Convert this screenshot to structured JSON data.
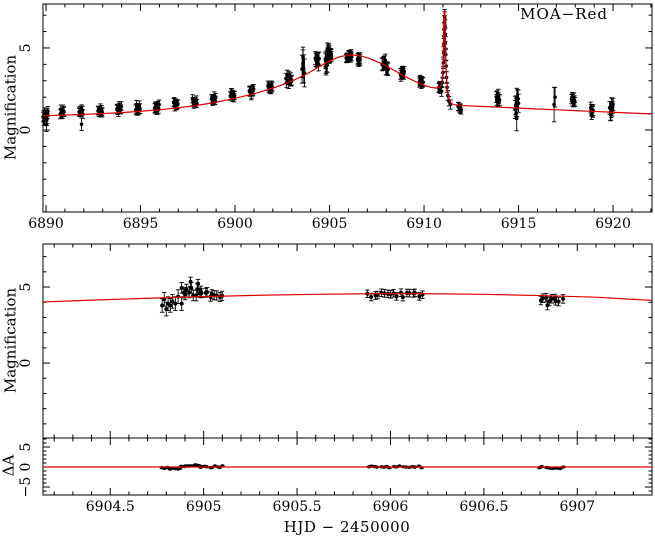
{
  "annotation": {
    "dataset_label": "MOA−Red"
  },
  "axis_titles": {
    "top_y": "Magnification",
    "middle_y": "Magnification",
    "bottom_y": "ΔA",
    "x": "HJD − 2450000"
  },
  "colors": {
    "model": "#dd0000",
    "data": "#000000",
    "frame": "#000000",
    "background": "#ffffff"
  },
  "scatter_seed": 20140607,
  "clusters_format": "[x_start, x_end, n_points, mean_y, y_scatter, y_error]",
  "points_format": "[x, y, y_error]",
  "chart_data": [
    {
      "name": "top",
      "type": "scatter",
      "description": "Full microlensing light curve with best-fit model and caustic spike",
      "ylabel": "Magnification",
      "xlim": [
        6889.84,
        6922.06
      ],
      "ylim": [
        -5.0,
        7.68
      ],
      "x_ticks": {
        "major": [
          6890,
          6895,
          6900,
          6905,
          6910,
          6915,
          6920
        ],
        "major_labels": [
          "6890",
          "6895",
          "6900",
          "6905",
          "6910",
          "6915",
          "6920"
        ],
        "minor_step": 1
      },
      "y_ticks": {
        "major": [
          0,
          5
        ],
        "major_labels": [
          "0",
          "5"
        ],
        "minor_step": 1
      },
      "model_line": [
        [
          6889.84,
          0.87
        ],
        [
          6891.0,
          0.91
        ],
        [
          6892.0,
          0.95
        ],
        [
          6893.0,
          1.0
        ],
        [
          6894.0,
          1.06
        ],
        [
          6895.0,
          1.14
        ],
        [
          6896.0,
          1.23
        ],
        [
          6897.0,
          1.35
        ],
        [
          6898.0,
          1.5
        ],
        [
          6899.0,
          1.69
        ],
        [
          6900.0,
          1.93
        ],
        [
          6901.0,
          2.21
        ],
        [
          6902.0,
          2.55
        ],
        [
          6903.0,
          2.97
        ],
        [
          6903.8,
          3.42
        ],
        [
          6904.4,
          3.82
        ],
        [
          6905.0,
          4.2
        ],
        [
          6905.5,
          4.45
        ],
        [
          6905.9,
          4.56
        ],
        [
          6906.3,
          4.57
        ],
        [
          6906.7,
          4.5
        ],
        [
          6907.1,
          4.36
        ],
        [
          6907.6,
          4.12
        ],
        [
          6908.1,
          3.84
        ],
        [
          6908.6,
          3.52
        ],
        [
          6909.1,
          3.2
        ],
        [
          6909.6,
          2.92
        ],
        [
          6910.0,
          2.73
        ],
        [
          6910.35,
          2.6
        ],
        [
          6910.6,
          2.56
        ],
        [
          6910.8,
          2.6
        ],
        [
          6910.93,
          2.8
        ],
        [
          6911.0,
          3.6
        ],
        [
          6911.04,
          6.0
        ],
        [
          6911.07,
          7.25
        ],
        [
          6911.1,
          7.25
        ],
        [
          6911.13,
          5.8
        ],
        [
          6911.17,
          3.6
        ],
        [
          6911.25,
          2.2
        ],
        [
          6911.38,
          1.7
        ],
        [
          6911.55,
          1.55
        ],
        [
          6912.0,
          1.49
        ],
        [
          6913.0,
          1.44
        ],
        [
          6914.0,
          1.39
        ],
        [
          6915.0,
          1.33
        ],
        [
          6916.0,
          1.28
        ],
        [
          6917.0,
          1.23
        ],
        [
          6918.0,
          1.18
        ],
        [
          6919.0,
          1.13
        ],
        [
          6920.0,
          1.08
        ],
        [
          6921.0,
          1.03
        ],
        [
          6922.06,
          0.98
        ]
      ],
      "clusters": [
        [
          6889.85,
          6890.1,
          12,
          0.85,
          0.3,
          0.3
        ],
        [
          6890.75,
          6890.95,
          8,
          1.1,
          0.15,
          0.28
        ],
        [
          6891.75,
          6891.95,
          9,
          1.12,
          0.18,
          0.25
        ],
        [
          6892.75,
          6892.98,
          10,
          1.22,
          0.18,
          0.25
        ],
        [
          6893.75,
          6893.98,
          10,
          1.28,
          0.2,
          0.27
        ],
        [
          6894.75,
          6894.98,
          10,
          1.3,
          0.22,
          0.3
        ],
        [
          6895.75,
          6895.98,
          10,
          1.42,
          0.22,
          0.28
        ],
        [
          6896.75,
          6896.98,
          9,
          1.58,
          0.18,
          0.25
        ],
        [
          6897.75,
          6897.98,
          9,
          1.72,
          0.18,
          0.25
        ],
        [
          6898.75,
          6898.98,
          9,
          1.92,
          0.18,
          0.25
        ],
        [
          6899.75,
          6899.98,
          10,
          2.12,
          0.18,
          0.25
        ],
        [
          6900.75,
          6900.98,
          10,
          2.32,
          0.2,
          0.28
        ],
        [
          6901.75,
          6901.98,
          10,
          2.58,
          0.22,
          0.28
        ],
        [
          6902.7,
          6903.0,
          12,
          3.1,
          0.28,
          0.3
        ],
        [
          6903.55,
          6903.68,
          4,
          3.6,
          0.45,
          0.85
        ],
        [
          6904.25,
          6904.45,
          8,
          4.25,
          0.28,
          0.4
        ],
        [
          6904.78,
          6904.88,
          8,
          4.1,
          0.3,
          0.45
        ],
        [
          6904.88,
          6904.98,
          10,
          4.7,
          0.28,
          0.35
        ],
        [
          6904.98,
          6905.1,
          10,
          4.52,
          0.18,
          0.3
        ],
        [
          6905.88,
          6906.17,
          16,
          4.5,
          0.15,
          0.25
        ],
        [
          6906.48,
          6906.62,
          8,
          4.25,
          0.18,
          0.32
        ],
        [
          6907.78,
          6908.1,
          12,
          3.95,
          0.3,
          0.38
        ],
        [
          6908.75,
          6908.95,
          10,
          3.35,
          0.22,
          0.32
        ],
        [
          6909.75,
          6909.95,
          10,
          2.92,
          0.18,
          0.28
        ],
        [
          6910.78,
          6910.88,
          5,
          2.55,
          0.13,
          0.28
        ],
        [
          6911.8,
          6911.97,
          6,
          1.32,
          0.13,
          0.25
        ],
        [
          6913.82,
          6914.0,
          8,
          1.95,
          0.22,
          0.33
        ],
        [
          6914.82,
          6915.0,
          10,
          1.55,
          0.55,
          0.55
        ],
        [
          6917.8,
          6917.98,
          8,
          1.85,
          0.18,
          0.28
        ],
        [
          6918.82,
          6918.95,
          6,
          1.15,
          0.22,
          0.33
        ],
        [
          6919.82,
          6920.0,
          10,
          1.2,
          0.4,
          0.38
        ]
      ],
      "points": [
        [
          6890.02,
          0.33,
          0.42
        ],
        [
          6891.88,
          0.35,
          0.38
        ],
        [
          6903.6,
          4.45,
          0.6
        ],
        [
          6914.9,
          0.7,
          0.75
        ],
        [
          6916.88,
          1.55,
          1.05
        ],
        [
          6916.93,
          2.0,
          0.6
        ],
        [
          6910.93,
          2.35,
          0.3
        ],
        [
          6910.97,
          2.9,
          0.32
        ],
        [
          6911.0,
          3.5,
          0.35
        ],
        [
          6911.02,
          4.1,
          0.35
        ],
        [
          6911.04,
          4.7,
          0.38
        ],
        [
          6911.05,
          5.2,
          0.38
        ],
        [
          6911.06,
          5.7,
          0.4
        ],
        [
          6911.07,
          6.15,
          0.4
        ],
        [
          6911.08,
          6.55,
          0.42
        ],
        [
          6911.09,
          6.9,
          0.45
        ],
        [
          6911.1,
          6.75,
          0.45
        ],
        [
          6911.11,
          6.3,
          0.4
        ],
        [
          6911.12,
          5.8,
          0.4
        ],
        [
          6911.13,
          5.3,
          0.4
        ],
        [
          6911.15,
          4.6,
          0.38
        ],
        [
          6911.17,
          3.9,
          0.35
        ],
        [
          6911.19,
          3.2,
          0.35
        ],
        [
          6911.22,
          2.6,
          0.3
        ],
        [
          6911.26,
          2.1,
          0.3
        ],
        [
          6911.32,
          1.75,
          0.28
        ],
        [
          6911.4,
          1.55,
          0.28
        ]
      ]
    },
    {
      "name": "middle",
      "type": "scatter",
      "description": "Zoom on HJD 6904.1–6907.4 around light-curve peak",
      "ylabel": "Magnification",
      "xlim": [
        6904.14,
        6907.4
      ],
      "ylim": [
        -4.93,
        7.83
      ],
      "x_ticks": {
        "major": [
          6904.5,
          6905.0,
          6905.5,
          6906.0,
          6906.5,
          6907.0
        ],
        "major_labels": null,
        "minor_step": 0.1
      },
      "y_ticks": {
        "major": [
          0,
          5
        ],
        "major_labels": [
          "0",
          "5"
        ],
        "minor_step": 1
      },
      "model_line": [
        [
          6904.14,
          4.02
        ],
        [
          6904.4,
          4.14
        ],
        [
          6904.7,
          4.26
        ],
        [
          6905.0,
          4.37
        ],
        [
          6905.3,
          4.46
        ],
        [
          6905.6,
          4.52
        ],
        [
          6905.9,
          4.56
        ],
        [
          6906.2,
          4.56
        ],
        [
          6906.5,
          4.52
        ],
        [
          6906.8,
          4.44
        ],
        [
          6907.1,
          4.33
        ],
        [
          6907.4,
          4.12
        ]
      ],
      "clusters": [
        [
          6904.78,
          6904.88,
          8,
          4.05,
          0.32,
          0.45
        ],
        [
          6904.88,
          6904.98,
          10,
          4.72,
          0.3,
          0.35
        ],
        [
          6904.98,
          6905.1,
          10,
          4.52,
          0.18,
          0.3
        ],
        [
          6905.88,
          6906.17,
          18,
          4.48,
          0.15,
          0.25
        ],
        [
          6906.8,
          6906.92,
          9,
          4.2,
          0.16,
          0.28
        ]
      ],
      "points": [
        [
          6904.93,
          5.35,
          0.3
        ],
        [
          6904.97,
          5.22,
          0.28
        ],
        [
          6904.8,
          3.55,
          0.45
        ],
        [
          6906.84,
          3.8,
          0.3
        ]
      ]
    },
    {
      "name": "bottom",
      "type": "scatter",
      "description": "Residuals ΔA from the model",
      "ylabel": "ΔA",
      "xlabel": "HJD − 2450000",
      "xlim": [
        6904.14,
        6907.4
      ],
      "ylim": [
        -7.0,
        7.25
      ],
      "x_ticks": {
        "major": [
          6904.5,
          6905.0,
          6905.5,
          6906.0,
          6906.5,
          6907.0
        ],
        "major_labels": [
          "6904.5",
          "6905",
          "6905.5",
          "6906",
          "6906.5",
          "6907"
        ],
        "minor_step": 0.1
      },
      "y_ticks": {
        "major": [
          -5,
          0,
          5
        ],
        "major_labels": [
          "−5",
          "0",
          "5"
        ],
        "minor_step": 1
      },
      "model_line": [
        [
          6904.14,
          0.0
        ],
        [
          6907.4,
          0.0
        ]
      ],
      "clusters": [
        [
          6904.78,
          6904.88,
          8,
          -0.35,
          0.3,
          0.18
        ],
        [
          6904.88,
          6904.98,
          10,
          0.35,
          0.3,
          0.18
        ],
        [
          6904.98,
          6905.1,
          10,
          0.1,
          0.25,
          0.15
        ],
        [
          6905.88,
          6906.17,
          18,
          0.0,
          0.25,
          0.15
        ],
        [
          6906.8,
          6906.92,
          9,
          -0.15,
          0.25,
          0.15
        ]
      ],
      "points": []
    }
  ]
}
